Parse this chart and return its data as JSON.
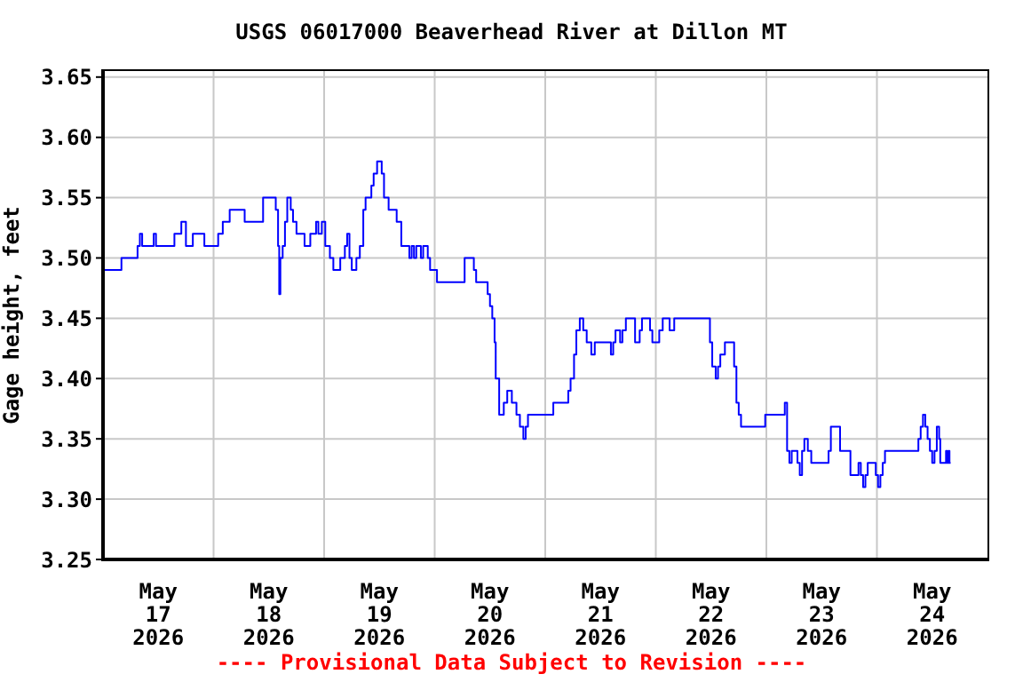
{
  "chart_data": {
    "type": "step",
    "title": "USGS 06017000 Beaverhead River at Dillon MT",
    "ylabel": "Gage height, feet",
    "annotations": [
      "---- Provisional Data Subject to Revision ----"
    ],
    "xlim": [
      "2026-05-17",
      "2026-05-25"
    ],
    "xticks": [
      {
        "value": "2026-05-17T12:00",
        "label": "May\n17\n2026"
      },
      {
        "value": "2026-05-18",
        "label": null
      },
      {
        "value": "2026-05-18T12:00",
        "label": "May\n18\n2026"
      },
      {
        "value": "2026-05-19",
        "label": null
      },
      {
        "value": "2026-05-19T12:00",
        "label": "May\n19\n2026"
      },
      {
        "value": "2026-05-20",
        "label": null
      },
      {
        "value": "2026-05-20T12:00",
        "label": "May\n20\n2026"
      },
      {
        "value": "2026-05-21",
        "label": null
      },
      {
        "value": "2026-05-21T12:00",
        "label": "May\n21\n2026"
      },
      {
        "value": "2026-05-22",
        "label": null
      },
      {
        "value": "2026-05-22T12:00",
        "label": "May\n22\n2026"
      },
      {
        "value": "2026-05-23",
        "label": null
      },
      {
        "value": "2026-05-23T12:00",
        "label": "May\n23\n2026"
      },
      {
        "value": "2026-05-24",
        "label": null
      },
      {
        "value": "2026-05-24T12:00",
        "label": "May\n24\n2026"
      }
    ],
    "ylim": [
      3.25,
      3.655
    ],
    "yticks": [
      {
        "value": 3.25,
        "label": "3.25"
      },
      {
        "value": 3.3,
        "label": "3.30"
      },
      {
        "value": 3.35,
        "label": "3.35"
      },
      {
        "value": 3.4,
        "label": "3.40"
      },
      {
        "value": 3.45,
        "label": "3.45"
      },
      {
        "value": 3.5,
        "label": "3.50"
      },
      {
        "value": 3.55,
        "label": "3.55"
      },
      {
        "value": 3.6,
        "label": "3.60"
      },
      {
        "value": 3.65,
        "label": "3.65"
      }
    ],
    "grid": true,
    "marker": "none",
    "line_style": "solid",
    "series": [
      {
        "color": "#0000ff",
        "x": [
          "2026-05-17T00:00",
          "2026-05-17T04:00",
          "2026-05-17T07:30",
          "2026-05-17T08:00",
          "2026-05-17T08:30",
          "2026-05-17T11:00",
          "2026-05-17T11:30",
          "2026-05-17T15:30",
          "2026-05-17T17:00",
          "2026-05-17T18:00",
          "2026-05-17T19:30",
          "2026-05-17T22:00",
          "2026-05-18T01:00",
          "2026-05-18T02:00",
          "2026-05-18T03:30",
          "2026-05-18T06:45",
          "2026-05-18T10:45",
          "2026-05-18T13:30",
          "2026-05-18T14:00",
          "2026-05-18T14:15",
          "2026-05-18T14:30",
          "2026-05-18T15:00",
          "2026-05-18T15:30",
          "2026-05-18T16:00",
          "2026-05-18T16:45",
          "2026-05-18T17:15",
          "2026-05-18T18:00",
          "2026-05-18T19:45",
          "2026-05-18T21:00",
          "2026-05-18T22:15",
          "2026-05-18T22:45",
          "2026-05-18T23:30",
          "2026-05-19T00:15",
          "2026-05-19T01:15",
          "2026-05-19T02:00",
          "2026-05-19T03:30",
          "2026-05-19T04:30",
          "2026-05-19T05:00",
          "2026-05-19T05:30",
          "2026-05-19T06:00",
          "2026-05-19T07:00",
          "2026-05-19T07:45",
          "2026-05-19T08:30",
          "2026-05-19T09:00",
          "2026-05-19T10:15",
          "2026-05-19T10:45",
          "2026-05-19T11:30",
          "2026-05-19T12:30",
          "2026-05-19T13:00",
          "2026-05-19T14:00",
          "2026-05-19T15:45",
          "2026-05-19T16:45",
          "2026-05-19T18:30",
          "2026-05-19T19:00",
          "2026-05-19T19:30",
          "2026-05-19T20:00",
          "2026-05-19T21:00",
          "2026-05-19T21:30",
          "2026-05-19T22:30",
          "2026-05-19T23:00",
          "2026-05-20T00:30",
          "2026-05-20T06:30",
          "2026-05-20T08:30",
          "2026-05-20T09:00",
          "2026-05-20T11:30",
          "2026-05-20T12:00",
          "2026-05-20T12:30",
          "2026-05-20T13:00",
          "2026-05-20T13:15",
          "2026-05-20T14:00",
          "2026-05-20T15:00",
          "2026-05-20T15:45",
          "2026-05-20T16:45",
          "2026-05-20T17:45",
          "2026-05-20T18:30",
          "2026-05-20T19:15",
          "2026-05-20T19:45",
          "2026-05-20T20:15",
          "2026-05-21T01:45",
          "2026-05-21T05:00",
          "2026-05-21T05:30",
          "2026-05-21T06:15",
          "2026-05-21T06:45",
          "2026-05-21T07:30",
          "2026-05-21T08:15",
          "2026-05-21T09:00",
          "2026-05-21T10:00",
          "2026-05-21T10:45",
          "2026-05-21T14:15",
          "2026-05-21T14:45",
          "2026-05-21T15:15",
          "2026-05-21T16:15",
          "2026-05-21T16:45",
          "2026-05-21T17:30",
          "2026-05-21T19:30",
          "2026-05-21T20:30",
          "2026-05-21T21:00",
          "2026-05-21T22:45",
          "2026-05-21T23:15",
          "2026-05-22T00:45",
          "2026-05-22T01:30",
          "2026-05-22T03:00",
          "2026-05-22T04:00",
          "2026-05-22T11:45",
          "2026-05-22T12:15",
          "2026-05-22T13:00",
          "2026-05-22T13:30",
          "2026-05-22T14:00",
          "2026-05-22T15:00",
          "2026-05-22T17:00",
          "2026-05-22T17:30",
          "2026-05-22T18:00",
          "2026-05-22T18:30",
          "2026-05-22T23:45",
          "2026-05-23T04:00",
          "2026-05-23T04:30",
          "2026-05-23T05:00",
          "2026-05-23T05:30",
          "2026-05-23T06:45",
          "2026-05-23T07:15",
          "2026-05-23T07:45",
          "2026-05-23T08:15",
          "2026-05-23T09:00",
          "2026-05-23T09:45",
          "2026-05-23T13:30",
          "2026-05-23T14:00",
          "2026-05-23T16:00",
          "2026-05-23T18:15",
          "2026-05-23T20:00",
          "2026-05-23T20:30",
          "2026-05-23T21:00",
          "2026-05-23T21:30",
          "2026-05-23T22:00",
          "2026-05-23T23:45",
          "2026-05-24T00:15",
          "2026-05-24T00:45",
          "2026-05-24T01:15",
          "2026-05-24T01:45",
          "2026-05-24T09:00",
          "2026-05-24T09:30",
          "2026-05-24T10:00",
          "2026-05-24T10:30",
          "2026-05-24T11:00",
          "2026-05-24T11:30",
          "2026-05-24T12:00",
          "2026-05-24T12:30",
          "2026-05-24T13:00",
          "2026-05-24T13:30",
          "2026-05-24T13:45",
          "2026-05-24T15:00",
          "2026-05-24T15:15",
          "2026-05-24T15:30",
          "2026-05-24T15:45",
          "2026-05-24T16:00"
        ],
        "values": [
          3.49,
          3.5,
          3.51,
          3.52,
          3.51,
          3.52,
          3.51,
          3.52,
          3.53,
          3.51,
          3.52,
          3.51,
          3.52,
          3.53,
          3.54,
          3.53,
          3.55,
          3.54,
          3.51,
          3.47,
          3.5,
          3.51,
          3.53,
          3.55,
          3.54,
          3.53,
          3.52,
          3.51,
          3.52,
          3.53,
          3.52,
          3.53,
          3.51,
          3.5,
          3.49,
          3.5,
          3.51,
          3.52,
          3.5,
          3.49,
          3.5,
          3.51,
          3.54,
          3.55,
          3.56,
          3.57,
          3.58,
          3.57,
          3.55,
          3.54,
          3.53,
          3.51,
          3.5,
          3.51,
          3.5,
          3.51,
          3.5,
          3.51,
          3.5,
          3.49,
          3.48,
          3.5,
          3.49,
          3.48,
          3.47,
          3.46,
          3.45,
          3.43,
          3.4,
          3.37,
          3.38,
          3.39,
          3.38,
          3.37,
          3.36,
          3.35,
          3.36,
          3.37,
          3.38,
          3.39,
          3.4,
          3.42,
          3.44,
          3.45,
          3.44,
          3.43,
          3.42,
          3.43,
          3.42,
          3.43,
          3.44,
          3.43,
          3.44,
          3.45,
          3.43,
          3.44,
          3.45,
          3.44,
          3.43,
          3.44,
          3.45,
          3.44,
          3.45,
          3.43,
          3.41,
          3.4,
          3.41,
          3.42,
          3.43,
          3.41,
          3.38,
          3.37,
          3.36,
          3.37,
          3.38,
          3.34,
          3.33,
          3.34,
          3.33,
          3.32,
          3.34,
          3.35,
          3.34,
          3.33,
          3.34,
          3.36,
          3.34,
          3.32,
          3.33,
          3.32,
          3.31,
          3.32,
          3.33,
          3.32,
          3.31,
          3.32,
          3.33,
          3.34,
          3.35,
          3.36,
          3.37,
          3.36,
          3.35,
          3.34,
          3.33,
          3.34,
          3.36,
          3.35,
          3.33,
          3.34,
          3.33,
          3.34,
          3.33,
          3.33
        ]
      }
    ]
  }
}
